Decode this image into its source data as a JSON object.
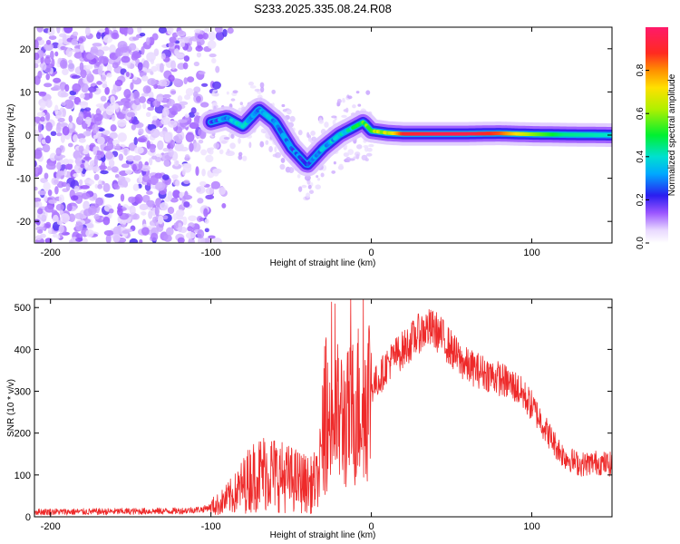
{
  "figure_title": "S233.2025.335.08.24.R08",
  "colors": {
    "snr_line": "#ee2a2a",
    "frame": "#000000",
    "background": "#ffffff"
  },
  "chart_data": [
    {
      "type": "heatmap",
      "id": "spectrogram",
      "title": "S233.2025.335.08.24.R08",
      "xlabel": "Height of straight line (km)",
      "ylabel": "Frequency (Hz)",
      "xlim": [
        -210,
        150
      ],
      "ylim": [
        -25,
        25
      ],
      "x_ticks": [
        -200,
        -100,
        0,
        100
      ],
      "x_tick_labels": [
        "-200",
        "-100",
        "0",
        "100"
      ],
      "y_ticks": [
        -20,
        -10,
        0,
        10,
        20
      ],
      "y_tick_labels": [
        "-20",
        "-10",
        "0",
        "10",
        "20"
      ],
      "description_points": {
        "noise_region_x": [
          -210,
          -100
        ],
        "ridge_x": [
          -100,
          -90,
          -80,
          -70,
          -60,
          -50,
          -40,
          -30,
          -20,
          -10,
          -5,
          0,
          10,
          20,
          40,
          60,
          80,
          100,
          120,
          150
        ],
        "ridge_freq": [
          3,
          4,
          2,
          6,
          3,
          -3,
          -7,
          -3,
          0,
          2,
          3,
          1,
          0.5,
          0.3,
          0.3,
          0.3,
          0.4,
          0.2,
          0.1,
          0.0
        ],
        "ridge_amplitude": [
          0.15,
          0.25,
          0.3,
          0.2,
          0.25,
          0.2,
          0.15,
          0.25,
          0.3,
          0.4,
          0.45,
          0.5,
          0.6,
          0.9,
          0.95,
          0.95,
          0.85,
          0.6,
          0.45,
          0.4
        ]
      },
      "colorbar": {
        "label": "Normalized spectral amplitude",
        "range": [
          0.0,
          1.0
        ],
        "ticks": [
          0.0,
          0.2,
          0.4,
          0.6,
          0.8
        ],
        "tick_labels": [
          "0.0",
          "0.2",
          "0.4",
          "0.6",
          "0.8"
        ]
      }
    },
    {
      "type": "line",
      "id": "snr",
      "xlabel": "Height of straight line (km)",
      "ylabel": "SNR (10 * v/v)",
      "xlim": [
        -210,
        150
      ],
      "ylim": [
        0,
        520
      ],
      "x_ticks": [
        -200,
        -100,
        0,
        100
      ],
      "x_tick_labels": [
        "-200",
        "-100",
        "0",
        "100"
      ],
      "y_ticks": [
        0,
        100,
        200,
        300,
        400,
        500
      ],
      "y_tick_labels": [
        "0",
        "100",
        "200",
        "300",
        "400",
        "500"
      ],
      "series": [
        {
          "name": "SNR",
          "x": [
            -210,
            -180,
            -150,
            -120,
            -105,
            -95,
            -85,
            -75,
            -65,
            -55,
            -45,
            -38,
            -33,
            -30,
            -25,
            -20,
            -15,
            -10,
            -5,
            0,
            5,
            10,
            15,
            20,
            25,
            30,
            35,
            40,
            45,
            50,
            55,
            60,
            70,
            80,
            90,
            95,
            100,
            105,
            110,
            115,
            120,
            130,
            140,
            150
          ],
          "values": [
            12,
            12,
            13,
            14,
            18,
            30,
            55,
            95,
            110,
            95,
            85,
            75,
            90,
            200,
            240,
            240,
            230,
            260,
            290,
            310,
            330,
            365,
            385,
            400,
            420,
            440,
            450,
            445,
            425,
            400,
            375,
            360,
            345,
            330,
            310,
            290,
            265,
            235,
            200,
            170,
            145,
            125,
            130,
            125
          ]
        }
      ]
    }
  ]
}
